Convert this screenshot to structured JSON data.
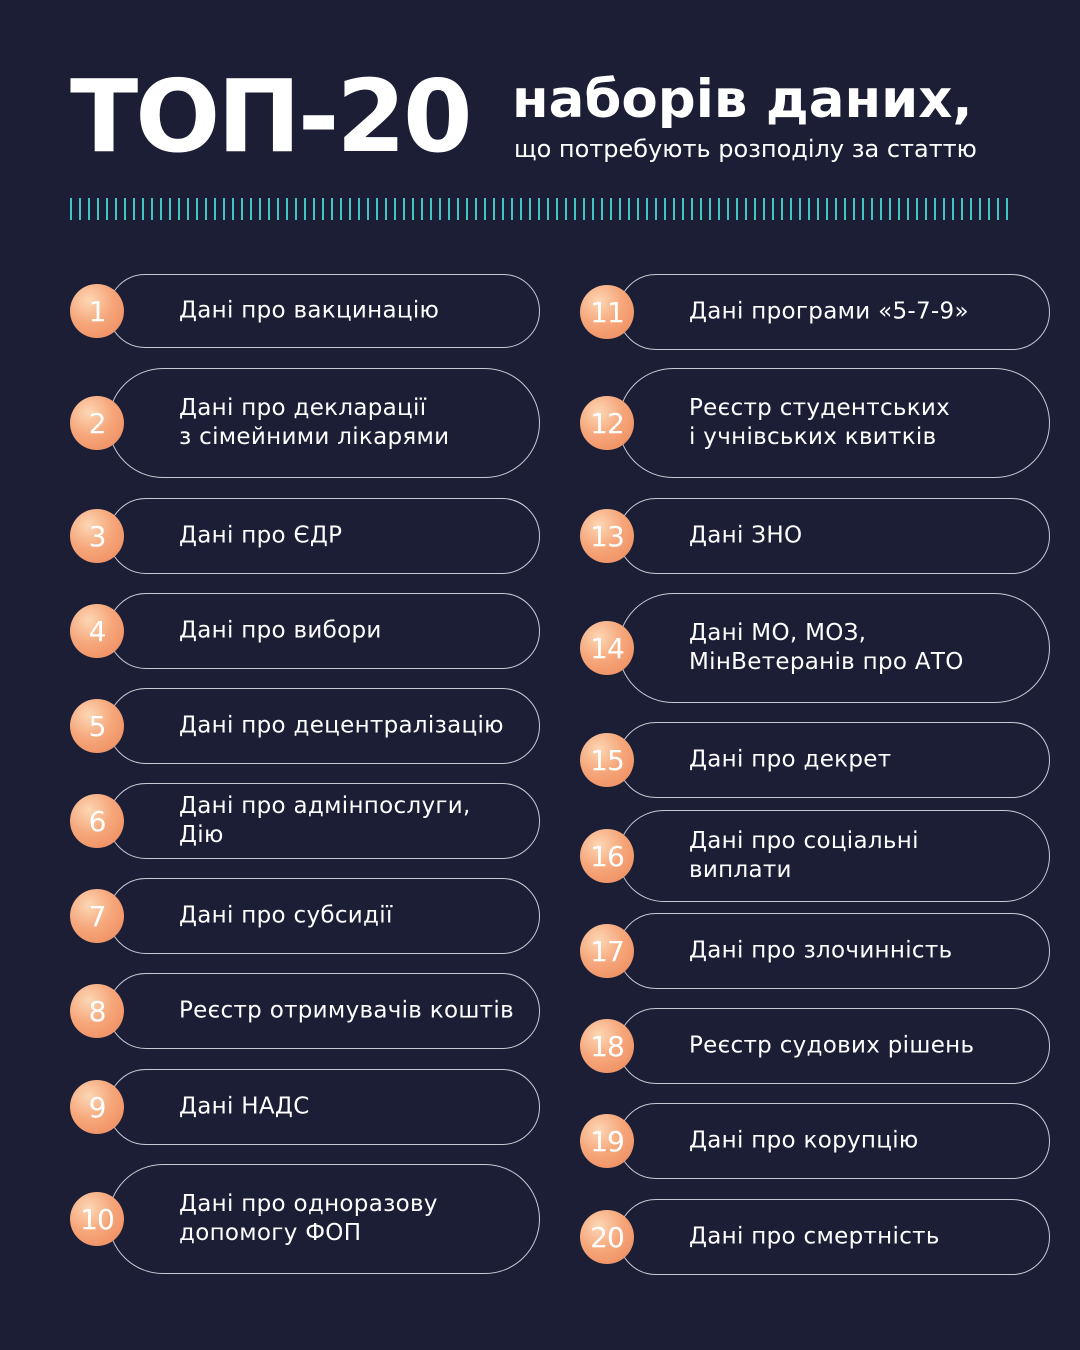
{
  "header": {
    "title": "ТОП-20",
    "subtitle_main": "наборів даних,",
    "subtitle_sub": "що потребують розподілу за статтю"
  },
  "colors": {
    "background": "#1b1e35",
    "accent_ticks": "#3fc7c7",
    "badge": "#f3a07a",
    "pill_border": "#c7c9d4"
  },
  "items": [
    {
      "number": "1",
      "label": "Дані про вакцинацію"
    },
    {
      "number": "2",
      "label": "Дані про декларації\nз сімейними лікарями"
    },
    {
      "number": "3",
      "label": "Дані про ЄДР"
    },
    {
      "number": "4",
      "label": "Дані про вибори"
    },
    {
      "number": "5",
      "label": "Дані про децентралізацію"
    },
    {
      "number": "6",
      "label": "Дані про адмінпослуги, Дію"
    },
    {
      "number": "7",
      "label": "Дані про субсидії"
    },
    {
      "number": "8",
      "label": "Реєстр отримувачів коштів"
    },
    {
      "number": "9",
      "label": "Дані НАДС"
    },
    {
      "number": "10",
      "label": "Дані про одноразову\nдопомогу ФОП"
    },
    {
      "number": "11",
      "label": "Дані програми «5-7-9»"
    },
    {
      "number": "12",
      "label": "Реєстр студентських\nі учнівських квитків"
    },
    {
      "number": "13",
      "label": "Дані ЗНО"
    },
    {
      "number": "14",
      "label": "Дані МО, МОЗ,\nМінВетеранів про АТО"
    },
    {
      "number": "15",
      "label": "Дані про декрет"
    },
    {
      "number": "16",
      "label": "Дані про соціальні\nвиплати"
    },
    {
      "number": "17",
      "label": "Дані про злочинність"
    },
    {
      "number": "18",
      "label": "Реєстр судових рішень"
    },
    {
      "number": "19",
      "label": "Дані про корупцію"
    },
    {
      "number": "20",
      "label": "Дані про смертність"
    }
  ]
}
